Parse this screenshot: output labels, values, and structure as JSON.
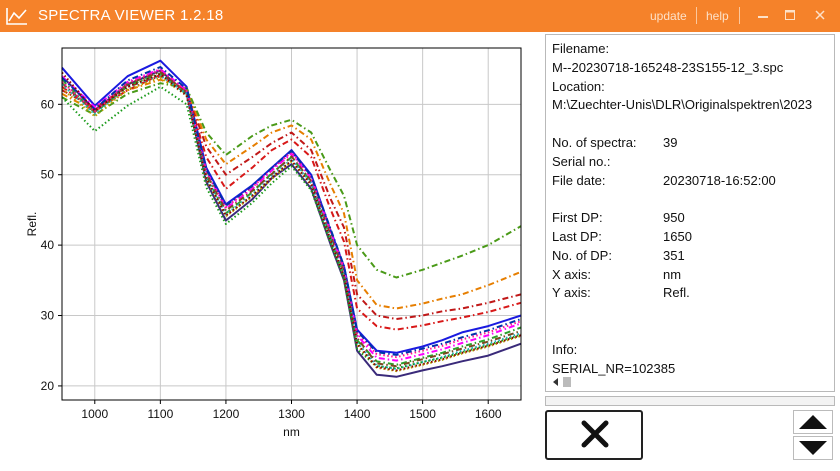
{
  "window": {
    "title": "SPECTRA VIEWER 1.2.18",
    "update_label": "update",
    "help_label": "help",
    "accent_color": "#f5822a"
  },
  "info": {
    "rows": [
      {
        "label": "Filename:",
        "value": ""
      },
      {
        "label": " M--20230718-165248-23S155-12_3.spc",
        "value": ""
      },
      {
        "label": "Location:",
        "value": ""
      },
      {
        "label": " M:\\Zuechter-Unis\\DLR\\Originalspektren\\2023",
        "value": ""
      },
      {
        "label": "",
        "value": ""
      },
      {
        "label": "No. of spectra:",
        "value": "39"
      },
      {
        "label": "Serial no.:",
        "value": ""
      },
      {
        "label": "File date:",
        "value": "20230718-16:52:00"
      },
      {
        "label": "",
        "value": ""
      },
      {
        "label": "First DP:",
        "value": "950"
      },
      {
        "label": "Last DP:",
        "value": "1650"
      },
      {
        "label": "No. of DP:",
        "value": "351"
      },
      {
        "label": "X axis:",
        "value": "nm"
      },
      {
        "label": "Y axis:",
        "value": "Refl."
      },
      {
        "label": "",
        "value": ""
      },
      {
        "label": "",
        "value": ""
      },
      {
        "label": "Info:",
        "value": ""
      },
      {
        "label": "SERIAL_NR=102385",
        "value": ""
      }
    ]
  },
  "chart_data": {
    "type": "line",
    "xlabel": "nm",
    "ylabel": "Refl.",
    "xlim": [
      950,
      1650
    ],
    "ylim": [
      18,
      68
    ],
    "xticks": [
      1000,
      1100,
      1200,
      1300,
      1400,
      1500,
      1600
    ],
    "yticks": [
      20,
      30,
      40,
      50,
      60
    ],
    "grid": true,
    "x": [
      950,
      1000,
      1050,
      1100,
      1140,
      1170,
      1200,
      1240,
      1270,
      1300,
      1330,
      1360,
      1380,
      1400,
      1430,
      1460,
      1500,
      1530,
      1560,
      1600,
      1650
    ],
    "series": [
      {
        "color": "#1a1ae0",
        "style": "solid",
        "values": [
          65.2,
          59.8,
          64.0,
          66.2,
          62.5,
          51.0,
          45.8,
          48.5,
          51.0,
          53.5,
          50.0,
          42.0,
          37.0,
          28.0,
          25.0,
          24.7,
          25.6,
          26.5,
          27.6,
          28.5,
          30.0
        ]
      },
      {
        "color": "#3a2a7a",
        "style": "solid",
        "values": [
          64.0,
          59.2,
          62.8,
          64.8,
          61.5,
          49.0,
          43.5,
          46.5,
          49.5,
          51.5,
          48.0,
          40.0,
          35.0,
          25.0,
          21.6,
          21.3,
          22.2,
          22.8,
          23.5,
          24.3,
          26.0
        ]
      },
      {
        "color": "#c01818",
        "style": "dashdot",
        "values": [
          62.0,
          59.5,
          62.5,
          64.0,
          62.0,
          54.0,
          50.0,
          52.5,
          54.5,
          56.0,
          53.5,
          46.5,
          42.5,
          33.0,
          30.0,
          29.5,
          30.0,
          30.6,
          31.0,
          31.8,
          33.0
        ]
      },
      {
        "color": "#e67e00",
        "style": "dashdot",
        "values": [
          61.5,
          59.0,
          62.0,
          63.5,
          62.2,
          55.0,
          51.5,
          54.0,
          56.0,
          57.0,
          55.0,
          48.5,
          44.5,
          35.0,
          31.5,
          31.0,
          31.7,
          32.4,
          33.0,
          34.3,
          36.2
        ]
      },
      {
        "color": "#4a9a18",
        "style": "dashdot",
        "values": [
          61.0,
          58.5,
          61.5,
          63.0,
          62.3,
          56.0,
          52.8,
          55.5,
          57.0,
          57.8,
          56.0,
          50.5,
          47.0,
          40.0,
          36.5,
          35.4,
          36.5,
          37.5,
          38.5,
          40.0,
          42.7
        ]
      },
      {
        "color": "#d81818",
        "style": "dashdot",
        "values": [
          62.5,
          59.2,
          62.0,
          64.2,
          61.8,
          52.5,
          48.0,
          51.0,
          53.5,
          55.0,
          52.5,
          45.0,
          40.5,
          31.0,
          28.5,
          28.0,
          28.6,
          29.2,
          29.7,
          30.5,
          31.8
        ]
      },
      {
        "color": "#2ca02c",
        "style": "dashdot",
        "values": [
          63.5,
          58.8,
          62.6,
          64.4,
          61.4,
          49.8,
          44.5,
          47.5,
          50.2,
          52.5,
          49.0,
          41.0,
          36.0,
          26.5,
          23.5,
          23.0,
          24.0,
          24.7,
          25.6,
          26.6,
          28.3
        ]
      },
      {
        "color": "#ff00ff",
        "style": "dashdot",
        "values": [
          64.0,
          59.6,
          63.2,
          65.0,
          62.0,
          50.5,
          45.2,
          48.0,
          50.6,
          53.0,
          49.5,
          41.8,
          36.5,
          27.2,
          24.0,
          23.6,
          24.5,
          25.2,
          26.1,
          27.2,
          28.9
        ]
      },
      {
        "color": "#7a4a20",
        "style": "dashdot",
        "values": [
          63.0,
          58.9,
          62.9,
          64.6,
          61.7,
          50.2,
          44.9,
          47.7,
          50.1,
          52.6,
          49.1,
          41.3,
          36.3,
          26.8,
          23.2,
          22.8,
          23.8,
          24.5,
          25.3,
          26.3,
          27.8
        ]
      },
      {
        "color": "#20b0c0",
        "style": "dotted",
        "values": [
          62.8,
          58.6,
          62.4,
          64.1,
          61.5,
          49.6,
          44.4,
          47.2,
          49.8,
          52.2,
          48.8,
          40.8,
          35.8,
          26.2,
          22.9,
          22.4,
          23.4,
          24.1,
          25.0,
          26.0,
          27.5
        ]
      },
      {
        "color": "#b8a000",
        "style": "dotted",
        "values": [
          62.2,
          58.3,
          62.1,
          63.8,
          61.3,
          49.3,
          44.1,
          46.9,
          49.4,
          51.9,
          48.5,
          40.5,
          35.5,
          25.8,
          22.6,
          22.1,
          23.0,
          23.7,
          24.6,
          25.6,
          27.1
        ]
      },
      {
        "color": "#1a9a1a",
        "style": "dotted",
        "values": [
          61.0,
          56.2,
          59.8,
          62.5,
          60.0,
          48.2,
          43.0,
          46.0,
          48.8,
          51.2,
          47.8,
          40.2,
          35.2,
          25.2,
          22.8,
          22.5,
          23.4,
          24.0,
          24.8,
          25.8,
          27.3
        ]
      },
      {
        "color": "#ff1493",
        "style": "dotted",
        "values": [
          63.2,
          59.0,
          63.0,
          64.9,
          61.9,
          50.4,
          45.4,
          48.2,
          50.8,
          53.2,
          49.6,
          41.9,
          36.8,
          27.5,
          24.5,
          24.1,
          25.0,
          25.7,
          26.6,
          27.6,
          29.2
        ]
      },
      {
        "color": "#0033aa",
        "style": "dashdot",
        "values": [
          63.8,
          59.3,
          63.4,
          65.3,
          62.2,
          50.8,
          45.6,
          48.4,
          51.0,
          53.4,
          49.8,
          42.2,
          37.0,
          27.8,
          24.8,
          24.4,
          25.3,
          26.0,
          26.9,
          27.9,
          29.5
        ]
      },
      {
        "color": "#8b0000",
        "style": "dotted",
        "values": [
          64.5,
          59.1,
          62.5,
          64.3,
          61.2,
          49.5,
          44.2,
          47.0,
          49.6,
          52.0,
          48.6,
          40.6,
          35.6,
          26.0,
          22.7,
          22.2,
          23.1,
          23.8,
          24.7,
          25.7,
          27.2
        ]
      }
    ]
  },
  "buttons": {
    "close_icon": "close-icon",
    "up_icon": "triangle-up-icon",
    "down_icon": "triangle-down-icon"
  }
}
